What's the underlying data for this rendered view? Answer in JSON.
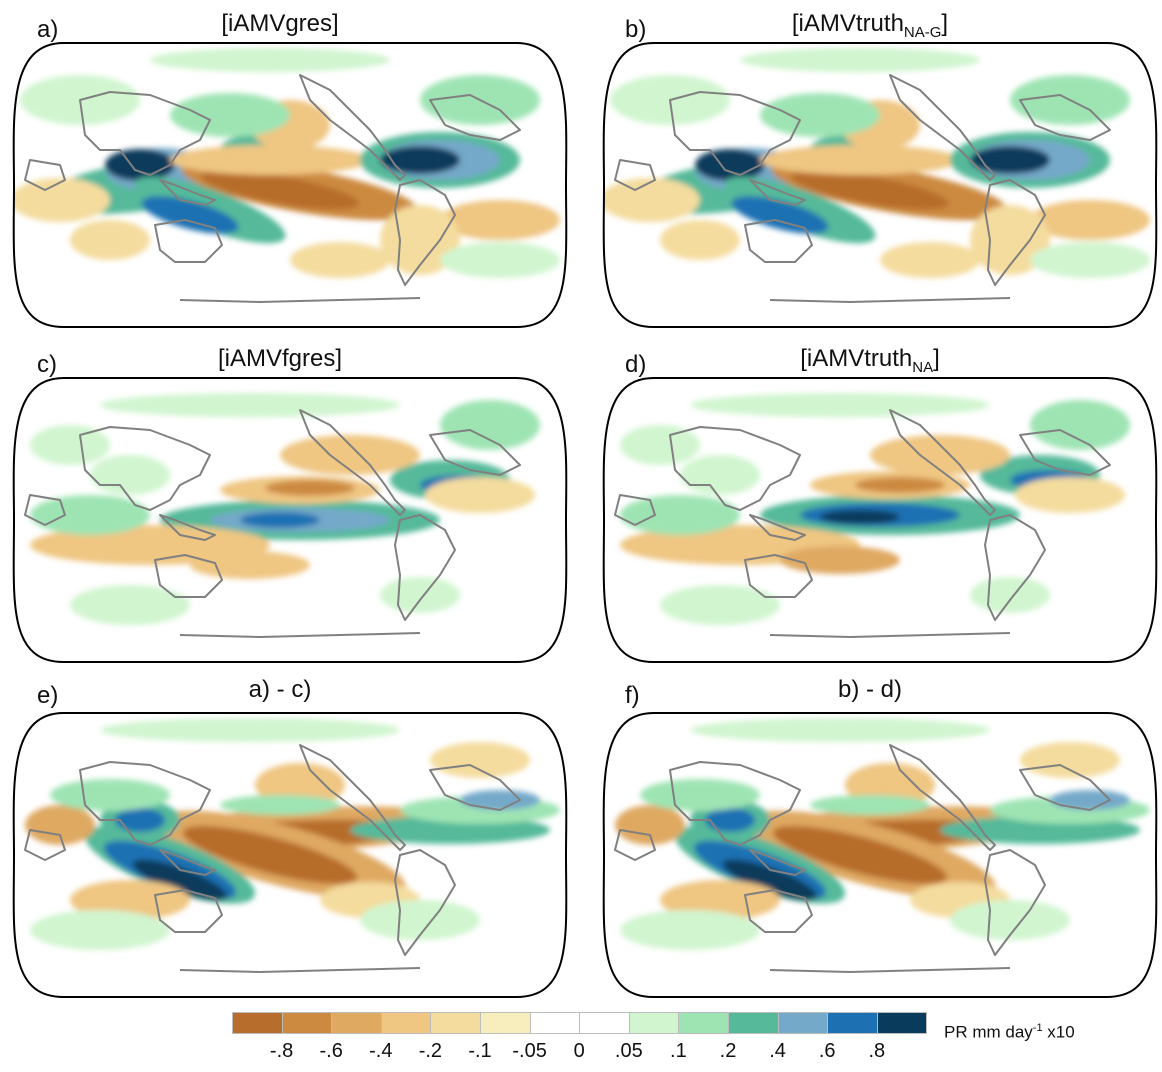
{
  "panels": [
    {
      "letter": "a)",
      "title_main": "[iAMVgres",
      "title_sub": "",
      "title_close": "]"
    },
    {
      "letter": "b)",
      "title_main": "[iAMVtruth",
      "title_sub": "NA-G",
      "title_close": "]"
    },
    {
      "letter": "c)",
      "title_main": "[iAMVfgres",
      "title_sub": "",
      "title_close": "]"
    },
    {
      "letter": "d)",
      "title_main": "[iAMVtruth",
      "title_sub": "NA",
      "title_close": "]"
    },
    {
      "letter": "e)",
      "title_main": "a) - c)",
      "title_sub": "",
      "title_close": ""
    },
    {
      "letter": "f)",
      "title_main": "b) - d)",
      "title_sub": "",
      "title_close": ""
    }
  ],
  "colorbar": {
    "ticks": [
      "-.8",
      "-.6",
      "-.4",
      "-.2",
      "-.1",
      "-.05",
      "0",
      ".05",
      ".1",
      ".2",
      ".4",
      ".6",
      ".8"
    ],
    "colors": [
      "#b76d2b",
      "#cc8a40",
      "#dfa962",
      "#efc682",
      "#f4dc9e",
      "#f8edbd",
      "#ffffff",
      "#ffffff",
      "#d0f5cf",
      "#9ee4b3",
      "#55b99a",
      "#74a9c9",
      "#1d71b3",
      "#083b5c"
    ],
    "label_text": "PR mm day",
    "label_exp": "-1",
    "label_suffix": " x10"
  },
  "map_style": {
    "coast_color": "#808080",
    "border_color": "#000000"
  }
}
